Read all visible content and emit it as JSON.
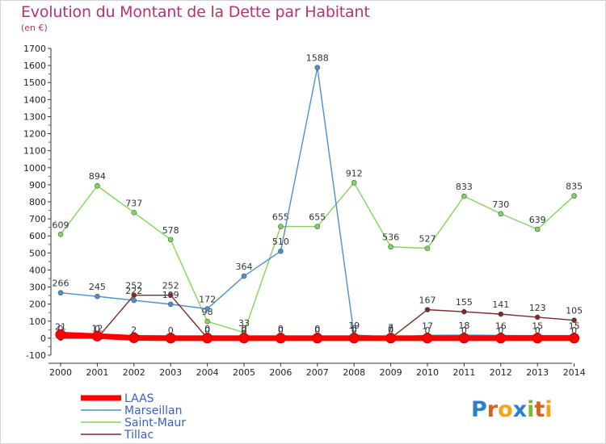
{
  "title": "Evolution du Montant de la Dette par Habitant",
  "subtitle": "(en €)",
  "logo_text": "Proxiti",
  "logo_letters": [
    {
      "ch": "P",
      "color": "#2f7fd0"
    },
    {
      "ch": "r",
      "color": "#e05d21"
    },
    {
      "ch": "o",
      "color": "#f3a21a"
    },
    {
      "ch": "x",
      "color": "#2f7fd0"
    },
    {
      "ch": "i",
      "color": "#7cbb2e"
    },
    {
      "ch": "t",
      "color": "#e05d21"
    },
    {
      "ch": "i",
      "color": "#f3a21a"
    }
  ],
  "chart_data": {
    "type": "line",
    "title": "Evolution du Montant de la Dette par Habitant",
    "ylabel": "(en €)",
    "x": [
      "2000",
      "2001",
      "2002",
      "2003",
      "2004",
      "2005",
      "2006",
      "2007",
      "2008",
      "2009",
      "2010",
      "2011",
      "2012",
      "2013",
      "2014"
    ],
    "ylim": [
      -100,
      1700
    ],
    "yticks": [
      -100,
      0,
      100,
      200,
      300,
      400,
      500,
      600,
      700,
      800,
      900,
      1000,
      1100,
      1200,
      1300,
      1400,
      1500,
      1600,
      1700
    ],
    "grid": false,
    "legend_position": "bottom-left",
    "series": [
      {
        "name": "LAAS",
        "color": "#ff0000",
        "values": [
          21,
          12,
          2,
          0,
          0,
          0,
          0,
          0,
          0,
          0,
          0,
          0,
          0,
          0,
          0
        ],
        "labels": [
          "21",
          "12",
          "2",
          "0",
          "0",
          "0",
          "0",
          "0",
          "0",
          "0",
          "0",
          "0",
          "0",
          "0",
          "0"
        ]
      },
      {
        "name": "Marseillan",
        "color": "#4c8fd1",
        "values": [
          266,
          245,
          222,
          199,
          172,
          364,
          510,
          1588,
          19,
          7,
          17,
          18,
          16,
          15,
          15
        ],
        "labels": [
          "266",
          "245",
          "222",
          "199",
          "172",
          "364",
          "510",
          "1588",
          "19",
          "7",
          "17",
          "18",
          "16",
          "15",
          "15"
        ]
      },
      {
        "name": "Saint-Maur",
        "color": "#7fd65a",
        "values": [
          609,
          894,
          737,
          578,
          98,
          33,
          655,
          655,
          912,
          536,
          527,
          833,
          730,
          639,
          835
        ],
        "labels": [
          "609",
          "894",
          "737",
          "578",
          "98",
          "33",
          "655",
          "655",
          "912",
          "536",
          "527",
          "833",
          "730",
          "639",
          "835"
        ]
      },
      {
        "name": "Tillac",
        "color": "#7a2a2a",
        "values": [
          0,
          0,
          252,
          252,
          0,
          0,
          0,
          0,
          0,
          0,
          167,
          155,
          141,
          123,
          105
        ],
        "labels": [
          "0",
          "0",
          "252",
          "252",
          "0",
          "0",
          "0",
          "0",
          "0",
          "0",
          "167",
          "155",
          "141",
          "123",
          "105"
        ]
      }
    ]
  }
}
